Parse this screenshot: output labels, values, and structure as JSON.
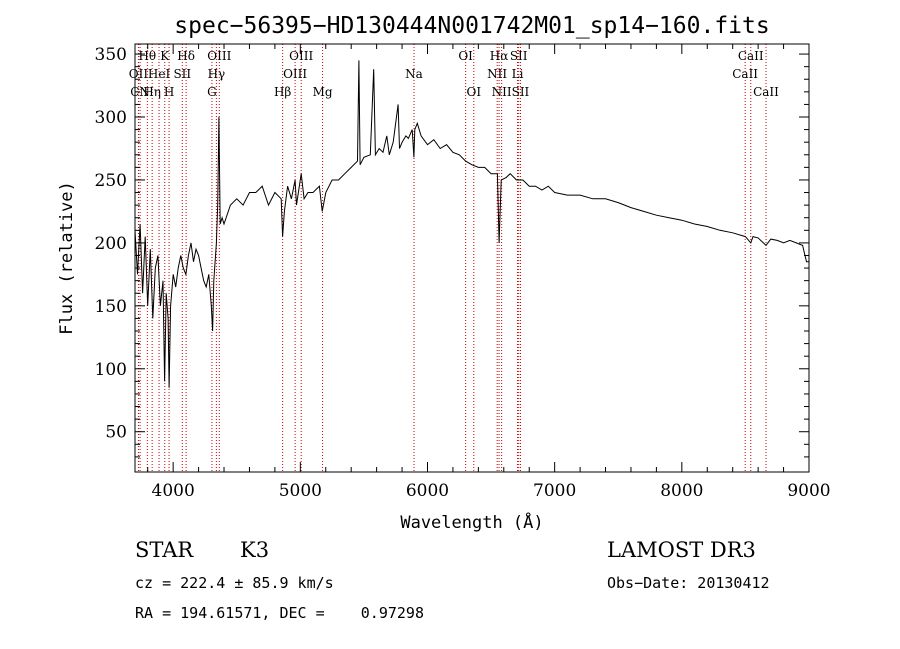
{
  "chart_data": {
    "type": "line",
    "title": "spec−56395−HD130444N001742M01_sp14−160.fits",
    "xlabel": "Wavelength (Å)",
    "ylabel": "Flux (relative)",
    "xlim": [
      3700,
      9000
    ],
    "ylim": [
      18,
      358
    ],
    "xticks": [
      4000,
      5000,
      6000,
      7000,
      8000,
      9000
    ],
    "yticks": [
      50,
      100,
      150,
      200,
      250,
      300,
      350
    ],
    "grid": false,
    "series": [
      {
        "name": "flux",
        "points": [
          [
            3700,
            210
          ],
          [
            3720,
            175
          ],
          [
            3740,
            215
          ],
          [
            3760,
            160
          ],
          [
            3780,
            205
          ],
          [
            3800,
            150
          ],
          [
            3820,
            195
          ],
          [
            3840,
            140
          ],
          [
            3860,
            180
          ],
          [
            3880,
            190
          ],
          [
            3900,
            150
          ],
          [
            3920,
            170
          ],
          [
            3933,
            90
          ],
          [
            3945,
            160
          ],
          [
            3960,
            140
          ],
          [
            3968,
            85
          ],
          [
            3980,
            150
          ],
          [
            4000,
            175
          ],
          [
            4020,
            165
          ],
          [
            4040,
            180
          ],
          [
            4060,
            190
          ],
          [
            4080,
            180
          ],
          [
            4100,
            175
          ],
          [
            4120,
            190
          ],
          [
            4140,
            200
          ],
          [
            4160,
            185
          ],
          [
            4180,
            195
          ],
          [
            4200,
            190
          ],
          [
            4220,
            180
          ],
          [
            4240,
            170
          ],
          [
            4260,
            165
          ],
          [
            4280,
            175
          ],
          [
            4300,
            150
          ],
          [
            4310,
            130
          ],
          [
            4320,
            170
          ],
          [
            4340,
            200
          ],
          [
            4350,
            230
          ],
          [
            4360,
            300
          ],
          [
            4370,
            215
          ],
          [
            4385,
            220
          ],
          [
            4400,
            215
          ],
          [
            4450,
            230
          ],
          [
            4500,
            235
          ],
          [
            4550,
            230
          ],
          [
            4600,
            240
          ],
          [
            4650,
            240
          ],
          [
            4700,
            245
          ],
          [
            4750,
            230
          ],
          [
            4800,
            240
          ],
          [
            4850,
            235
          ],
          [
            4861,
            205
          ],
          [
            4875,
            225
          ],
          [
            4900,
            245
          ],
          [
            4930,
            235
          ],
          [
            4959,
            250
          ],
          [
            4970,
            230
          ],
          [
            5007,
            255
          ],
          [
            5030,
            235
          ],
          [
            5060,
            240
          ],
          [
            5100,
            240
          ],
          [
            5150,
            245
          ],
          [
            5172,
            225
          ],
          [
            5200,
            240
          ],
          [
            5250,
            250
          ],
          [
            5300,
            250
          ],
          [
            5350,
            255
          ],
          [
            5400,
            260
          ],
          [
            5450,
            265
          ],
          [
            5461,
            345
          ],
          [
            5470,
            262
          ],
          [
            5500,
            268
          ],
          [
            5550,
            270
          ],
          [
            5577,
            338
          ],
          [
            5590,
            270
          ],
          [
            5620,
            275
          ],
          [
            5650,
            272
          ],
          [
            5680,
            285
          ],
          [
            5700,
            270
          ],
          [
            5730,
            280
          ],
          [
            5769,
            310
          ],
          [
            5780,
            275
          ],
          [
            5800,
            280
          ],
          [
            5830,
            285
          ],
          [
            5850,
            283
          ],
          [
            5880,
            290
          ],
          [
            5893,
            268
          ],
          [
            5900,
            290
          ],
          [
            5920,
            295
          ],
          [
            5950,
            285
          ],
          [
            6000,
            278
          ],
          [
            6050,
            282
          ],
          [
            6100,
            275
          ],
          [
            6150,
            278
          ],
          [
            6200,
            272
          ],
          [
            6250,
            270
          ],
          [
            6300,
            265
          ],
          [
            6350,
            262
          ],
          [
            6400,
            260
          ],
          [
            6450,
            260
          ],
          [
            6500,
            255
          ],
          [
            6550,
            255
          ],
          [
            6563,
            200
          ],
          [
            6580,
            250
          ],
          [
            6620,
            252
          ],
          [
            6650,
            255
          ],
          [
            6700,
            250
          ],
          [
            6750,
            250
          ],
          [
            6800,
            245
          ],
          [
            6850,
            245
          ],
          [
            6900,
            242
          ],
          [
            6950,
            245
          ],
          [
            7000,
            240
          ],
          [
            7100,
            238
          ],
          [
            7200,
            238
          ],
          [
            7300,
            235
          ],
          [
            7400,
            235
          ],
          [
            7500,
            232
          ],
          [
            7600,
            228
          ],
          [
            7700,
            225
          ],
          [
            7800,
            222
          ],
          [
            7900,
            220
          ],
          [
            8000,
            218
          ],
          [
            8100,
            215
          ],
          [
            8200,
            213
          ],
          [
            8300,
            210
          ],
          [
            8400,
            208
          ],
          [
            8500,
            205
          ],
          [
            8542,
            200
          ],
          [
            8560,
            205
          ],
          [
            8600,
            204
          ],
          [
            8662,
            198
          ],
          [
            8700,
            203
          ],
          [
            8750,
            202
          ],
          [
            8800,
            200
          ],
          [
            8850,
            202
          ],
          [
            8900,
            200
          ],
          [
            8950,
            198
          ],
          [
            8980,
            185
          ],
          [
            9000,
            185
          ]
        ]
      }
    ],
    "lines": [
      {
        "label": "Hθ",
        "wave": 3797,
        "row": 0
      },
      {
        "label": "OII",
        "wave": 3727,
        "row": 1
      },
      {
        "label": "CN",
        "wave": 3740,
        "row": 2
      },
      {
        "label": "Hη",
        "wave": 3835,
        "row": 2
      },
      {
        "label": "K",
        "wave": 3934,
        "row": 0
      },
      {
        "label": "HeI",
        "wave": 3889,
        "row": 1
      },
      {
        "label": "SII",
        "wave": 4072,
        "row": 1
      },
      {
        "label": "H",
        "wave": 3968,
        "row": 2
      },
      {
        "label": "Hδ",
        "wave": 4102,
        "row": 0
      },
      {
        "label": "OIII",
        "wave": 4363,
        "row": 0
      },
      {
        "label": "Hγ",
        "wave": 4340,
        "row": 1
      },
      {
        "label": "G",
        "wave": 4305,
        "row": 2
      },
      {
        "label": "OIII",
        "wave": 5007,
        "row": 0
      },
      {
        "label": "OIII",
        "wave": 4959,
        "row": 1
      },
      {
        "label": "Hβ",
        "wave": 4861,
        "row": 2
      },
      {
        "label": "Mg",
        "wave": 5175,
        "row": 2
      },
      {
        "label": "Na",
        "wave": 5894,
        "row": 1
      },
      {
        "label": "OI",
        "wave": 6300,
        "row": 0
      },
      {
        "label": "OI",
        "wave": 6364,
        "row": 2
      },
      {
        "label": "Hα",
        "wave": 6563,
        "row": 0
      },
      {
        "label": "SII",
        "wave": 6717,
        "row": 0
      },
      {
        "label": "NII",
        "wave": 6548,
        "row": 1
      },
      {
        "label": "Li",
        "wave": 6708,
        "row": 1
      },
      {
        "label": "NII",
        "wave": 6583,
        "row": 2
      },
      {
        "label": "SII",
        "wave": 6731,
        "row": 2
      },
      {
        "label": "CaII",
        "wave": 8542,
        "row": 0
      },
      {
        "label": "CaII",
        "wave": 8498,
        "row": 1
      },
      {
        "label": "CaII",
        "wave": 8662,
        "row": 2
      }
    ]
  },
  "info": {
    "object_class": "STAR",
    "subclass": "K3",
    "survey": "LAMOST DR3",
    "cz": "cz = 222.4 ± 85.9 km/s",
    "obs_date": "Obs−Date: 20130412",
    "coords": "RA = 194.61571, DEC =    0.97298"
  },
  "colors": {
    "line_marker": "#cc0000",
    "spectrum": "#000000"
  }
}
